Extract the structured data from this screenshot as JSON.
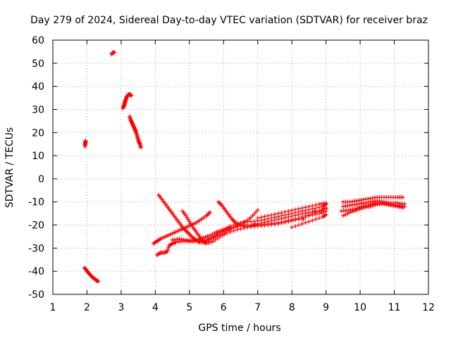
{
  "chart_data": {
    "type": "scatter",
    "title": "Day 279 of 2024, Sidereal Day-to-day VTEC variation (SDTVAR) for receiver braz",
    "xlabel": "GPS time / hours",
    "ylabel": "SDTVAR / TECUs",
    "xlim": [
      1,
      12
    ],
    "ylim": [
      -50,
      60
    ],
    "xticks": [
      1,
      2,
      3,
      4,
      5,
      6,
      7,
      8,
      9,
      10,
      11,
      12
    ],
    "yticks": [
      -50,
      -40,
      -30,
      -20,
      -10,
      0,
      10,
      20,
      30,
      40,
      50,
      60
    ],
    "grid": true,
    "legend": "none",
    "marker": "+",
    "color": "#ff0000",
    "series": [
      {
        "points": [
          [
            1.95,
            14.5
          ],
          [
            1.95,
            15.5
          ],
          [
            1.96,
            16.5
          ],
          [
            1.94,
            14.0
          ]
        ]
      },
      {
        "points": [
          [
            1.93,
            -38.5
          ],
          [
            1.98,
            -39.5
          ],
          [
            2.03,
            -40.5
          ],
          [
            2.08,
            -41.3
          ],
          [
            2.13,
            -42.2
          ],
          [
            2.18,
            -42.8
          ],
          [
            2.23,
            -43.4
          ],
          [
            2.28,
            -44.0
          ],
          [
            2.33,
            -44.4
          ]
        ]
      },
      {
        "points": [
          [
            2.72,
            54.0
          ],
          [
            2.76,
            54.5
          ],
          [
            2.8,
            54.8
          ]
        ]
      },
      {
        "points": [
          [
            3.05,
            30.5
          ],
          [
            3.08,
            31.5
          ],
          [
            3.1,
            32.5
          ],
          [
            3.12,
            33.5
          ],
          [
            3.14,
            34.5
          ],
          [
            3.16,
            35.3
          ],
          [
            3.19,
            36.0
          ],
          [
            3.22,
            36.5
          ],
          [
            3.26,
            36.5
          ],
          [
            3.3,
            36.0
          ]
        ]
      },
      {
        "points": [
          [
            3.25,
            27.0
          ],
          [
            3.28,
            25.5
          ],
          [
            3.31,
            24.5
          ],
          [
            3.34,
            23.5
          ],
          [
            3.37,
            22.5
          ],
          [
            3.4,
            21.5
          ],
          [
            3.43,
            20.5
          ],
          [
            3.46,
            19.0
          ],
          [
            3.49,
            17.5
          ],
          [
            3.52,
            16.0
          ],
          [
            3.55,
            15.0
          ],
          [
            3.58,
            13.5
          ]
        ]
      },
      {
        "points": [
          [
            4.05,
            -33.0
          ],
          [
            4.15,
            -32.0
          ],
          [
            4.25,
            -32.0
          ],
          [
            4.35,
            -31.5
          ],
          [
            4.4,
            -29.0
          ],
          [
            4.5,
            -28.0
          ],
          [
            4.6,
            -27.5
          ],
          [
            4.8,
            -27.0
          ],
          [
            5.0,
            -27.0
          ],
          [
            5.2,
            -26.5
          ],
          [
            5.4,
            -25.5
          ],
          [
            5.6,
            -24.5
          ],
          [
            5.8,
            -23.0
          ],
          [
            6.0,
            -22.0
          ],
          [
            6.2,
            -21.0
          ],
          [
            6.5,
            -20.5
          ],
          [
            6.8,
            -20.0
          ],
          [
            7.0,
            -19.5
          ],
          [
            7.3,
            -18.5
          ],
          [
            7.6,
            -17.5
          ],
          [
            7.9,
            -16.5
          ],
          [
            8.2,
            -15.5
          ],
          [
            8.5,
            -14.5
          ],
          [
            8.8,
            -14.0
          ],
          [
            9.0,
            -13.0
          ]
        ]
      },
      {
        "points": [
          [
            3.95,
            -28.0
          ],
          [
            4.05,
            -27.0
          ],
          [
            4.15,
            -26.0
          ],
          [
            4.3,
            -25.0
          ],
          [
            4.45,
            -24.0
          ],
          [
            4.6,
            -23.0
          ],
          [
            4.75,
            -22.0
          ],
          [
            4.9,
            -21.0
          ],
          [
            5.05,
            -20.0
          ],
          [
            5.2,
            -19.0
          ],
          [
            5.35,
            -17.5
          ],
          [
            5.5,
            -16.0
          ],
          [
            5.6,
            -14.5
          ]
        ]
      },
      {
        "points": [
          [
            4.1,
            -7.0
          ],
          [
            4.2,
            -9.0
          ],
          [
            4.3,
            -11.0
          ],
          [
            4.4,
            -13.0
          ],
          [
            4.5,
            -15.0
          ],
          [
            4.6,
            -17.0
          ],
          [
            4.7,
            -19.0
          ],
          [
            4.8,
            -21.0
          ],
          [
            4.9,
            -22.5
          ],
          [
            5.0,
            -24.0
          ],
          [
            5.1,
            -25.5
          ],
          [
            5.2,
            -26.5
          ],
          [
            5.3,
            -27.5
          ],
          [
            5.45,
            -27.5
          ],
          [
            5.6,
            -26.0
          ],
          [
            5.8,
            -24.0
          ],
          [
            6.0,
            -22.0
          ],
          [
            6.2,
            -20.5
          ],
          [
            6.5,
            -19.0
          ],
          [
            6.8,
            -18.5
          ],
          [
            7.1,
            -18.0
          ],
          [
            7.4,
            -17.0
          ],
          [
            7.7,
            -16.0
          ],
          [
            8.0,
            -15.0
          ],
          [
            8.3,
            -14.0
          ],
          [
            8.6,
            -13.0
          ],
          [
            8.9,
            -12.0
          ],
          [
            9.0,
            -11.0
          ]
        ]
      },
      {
        "points": [
          [
            4.8,
            -14.0
          ],
          [
            4.9,
            -16.0
          ],
          [
            5.0,
            -18.5
          ],
          [
            5.1,
            -21.0
          ],
          [
            5.2,
            -23.0
          ],
          [
            5.3,
            -25.0
          ],
          [
            5.4,
            -27.0
          ],
          [
            5.5,
            -28.0
          ],
          [
            5.7,
            -27.0
          ],
          [
            5.9,
            -25.0
          ],
          [
            6.1,
            -23.5
          ],
          [
            6.4,
            -22.0
          ],
          [
            6.7,
            -21.0
          ],
          [
            7.0,
            -20.5
          ],
          [
            7.3,
            -20.0
          ],
          [
            7.6,
            -19.5
          ],
          [
            7.9,
            -18.5
          ],
          [
            8.2,
            -17.5
          ],
          [
            8.5,
            -16.0
          ],
          [
            8.8,
            -15.0
          ],
          [
            9.0,
            -14.0
          ]
        ]
      },
      {
        "points": [
          [
            4.5,
            -26.5
          ],
          [
            4.7,
            -26.0
          ],
          [
            4.9,
            -26.5
          ],
          [
            5.1,
            -27.0
          ],
          [
            5.3,
            -27.0
          ],
          [
            5.5,
            -26.5
          ],
          [
            5.7,
            -25.5
          ],
          [
            5.9,
            -24.0
          ],
          [
            6.1,
            -22.5
          ],
          [
            6.3,
            -21.0
          ],
          [
            6.5,
            -19.5
          ],
          [
            6.7,
            -18.0
          ],
          [
            6.85,
            -16.0
          ],
          [
            7.0,
            -13.5
          ]
        ]
      },
      {
        "points": [
          [
            5.85,
            -10.0
          ],
          [
            5.95,
            -11.5
          ],
          [
            6.05,
            -13.5
          ],
          [
            6.15,
            -15.5
          ],
          [
            6.25,
            -17.5
          ],
          [
            6.35,
            -19.0
          ],
          [
            6.5,
            -20.0
          ],
          [
            6.7,
            -20.5
          ],
          [
            7.0,
            -20.0
          ],
          [
            7.3,
            -19.5
          ],
          [
            7.6,
            -19.0
          ],
          [
            7.9,
            -18.0
          ],
          [
            8.2,
            -17.0
          ],
          [
            8.5,
            -15.5
          ],
          [
            8.8,
            -14.0
          ],
          [
            9.0,
            -12.5
          ]
        ]
      },
      {
        "points": [
          [
            7.0,
            -17.0
          ],
          [
            7.3,
            -16.0
          ],
          [
            7.6,
            -15.0
          ],
          [
            7.9,
            -14.0
          ],
          [
            8.2,
            -13.0
          ],
          [
            8.5,
            -12.0
          ],
          [
            8.8,
            -11.0
          ],
          [
            9.0,
            -10.5
          ],
          [
            8.0,
            -21.0
          ],
          [
            8.3,
            -19.5
          ],
          [
            8.6,
            -18.0
          ],
          [
            8.9,
            -16.5
          ],
          [
            9.0,
            -15.5
          ]
        ]
      },
      {
        "points": [
          [
            9.5,
            -10.0
          ],
          [
            9.7,
            -10.0
          ],
          [
            9.9,
            -9.5
          ],
          [
            10.1,
            -9.0
          ],
          [
            10.3,
            -8.5
          ],
          [
            10.5,
            -8.0
          ],
          [
            10.7,
            -8.0
          ],
          [
            10.9,
            -8.0
          ],
          [
            11.1,
            -8.0
          ],
          [
            11.25,
            -8.0
          ]
        ]
      },
      {
        "points": [
          [
            9.5,
            -12.0
          ],
          [
            9.7,
            -11.5
          ],
          [
            9.9,
            -11.0
          ],
          [
            10.1,
            -10.5
          ],
          [
            10.3,
            -10.0
          ],
          [
            10.5,
            -9.5
          ],
          [
            10.7,
            -10.0
          ],
          [
            10.9,
            -10.5
          ],
          [
            11.1,
            -10.5
          ],
          [
            11.3,
            -11.0
          ]
        ]
      },
      {
        "points": [
          [
            9.45,
            -14.0
          ],
          [
            9.65,
            -13.5
          ],
          [
            9.85,
            -13.0
          ],
          [
            10.05,
            -12.0
          ],
          [
            10.25,
            -11.5
          ],
          [
            10.45,
            -10.5
          ],
          [
            10.65,
            -10.5
          ],
          [
            10.85,
            -11.0
          ],
          [
            11.05,
            -11.5
          ],
          [
            11.3,
            -12.0
          ]
        ]
      },
      {
        "points": [
          [
            9.5,
            -16.0
          ],
          [
            9.7,
            -14.5
          ],
          [
            9.9,
            -13.5
          ],
          [
            10.1,
            -12.5
          ],
          [
            10.3,
            -12.0
          ],
          [
            10.5,
            -11.0
          ],
          [
            10.7,
            -11.0
          ],
          [
            10.9,
            -11.5
          ],
          [
            11.1,
            -12.0
          ],
          [
            11.25,
            -12.5
          ]
        ]
      }
    ]
  }
}
